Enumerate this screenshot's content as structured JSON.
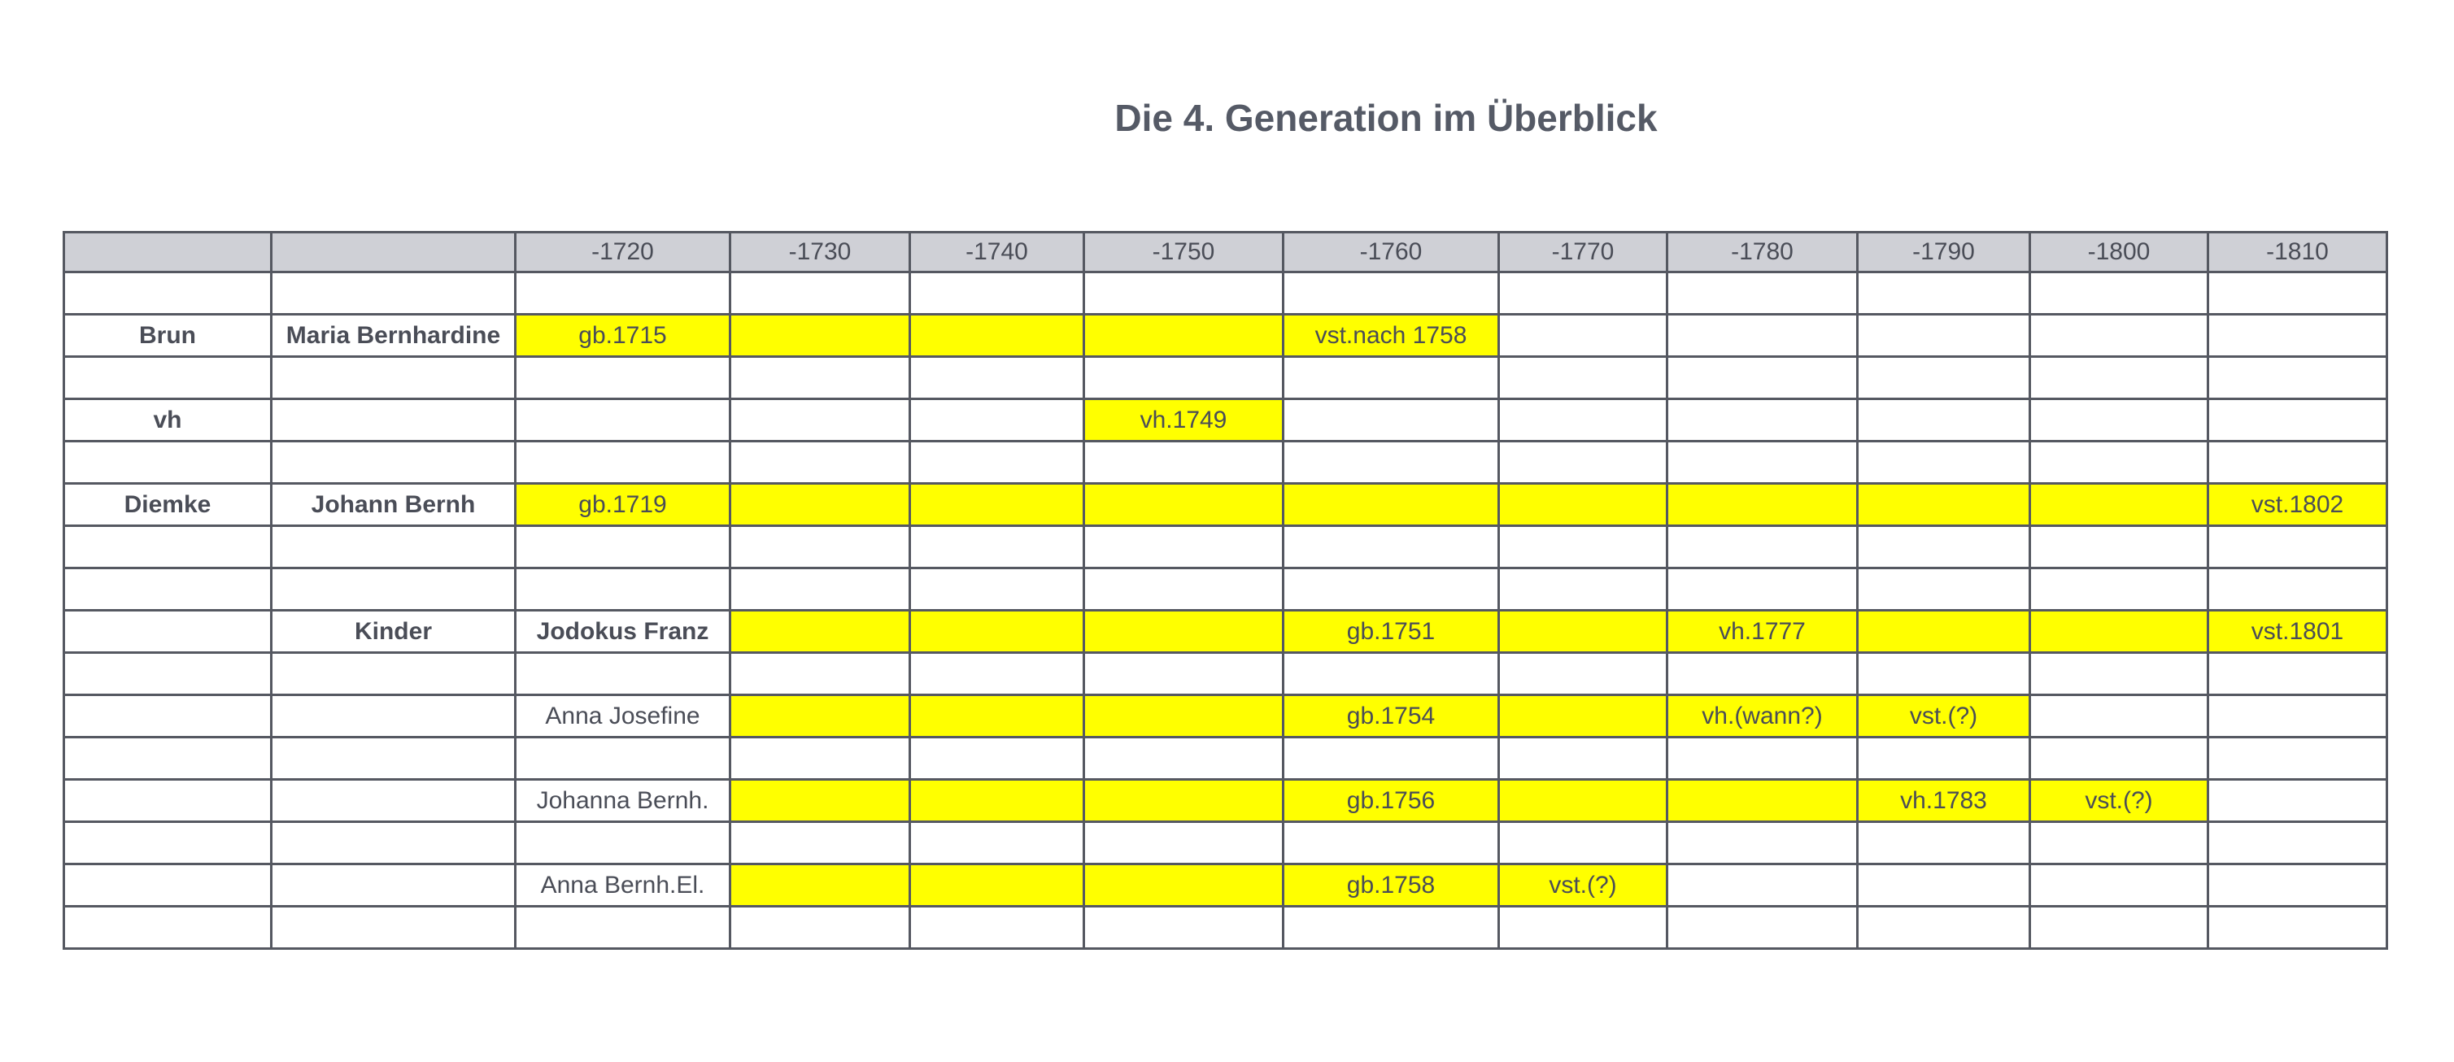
{
  "title": "Die 4. Generation im Überblick",
  "table": {
    "columns": [
      "-1720",
      "-1730",
      "-1740",
      "-1750",
      "-1760",
      "-1770",
      "-1780",
      "-1790",
      "-1800",
      "-1810"
    ],
    "rows": [
      {
        "family": "Brun",
        "name": "Maria Bernhardine",
        "cells": [
          "gb.1715",
          "vst.nach 1758"
        ]
      },
      {
        "family": "vh",
        "cells": [
          "vh.1749"
        ]
      },
      {
        "family": "Diemke",
        "name": "Johann Bernh",
        "cells": [
          "gb.1719",
          "vst.1802"
        ]
      },
      {
        "group": "Kinder",
        "name": "Jodokus Franz",
        "cells": [
          "gb.1751",
          "vh.1777",
          "vst.1801"
        ]
      },
      {
        "name": "Anna Josefine",
        "cells": [
          "gb.1754",
          "vh.(wann?)",
          "vst.(?)"
        ]
      },
      {
        "name": "Johanna Bernh.",
        "cells": [
          "gb.1756",
          "vh.1783",
          "vst.(?)"
        ]
      },
      {
        "name": "Anna Bernh.El.",
        "cells": [
          "gb.1758",
          "vst.(?)"
        ]
      }
    ]
  }
}
